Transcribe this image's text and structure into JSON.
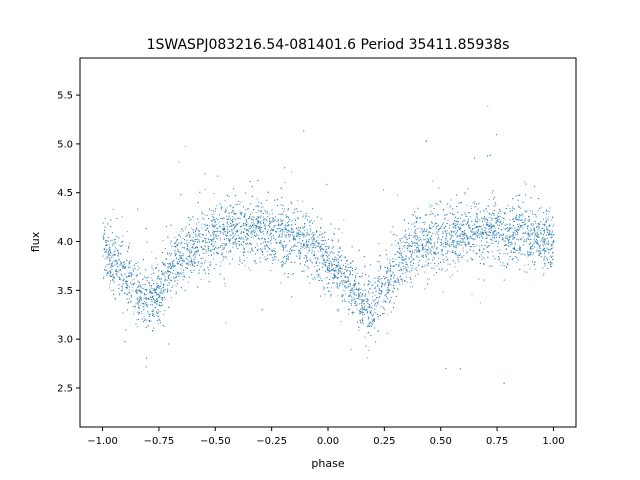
{
  "chart_data": {
    "type": "scatter",
    "title": "1SWASPJ083216.54-081401.6 Period 35411.85938s",
    "xlabel": "phase",
    "ylabel": "flux",
    "xlim": [
      -1.1,
      1.1
    ],
    "ylim": [
      2.1,
      5.88
    ],
    "xticks": [
      -1.0,
      -0.75,
      -0.5,
      -0.25,
      0.0,
      0.25,
      0.5,
      0.75,
      1.0
    ],
    "xtick_labels": [
      "−1.00",
      "−0.75",
      "−0.50",
      "−0.25",
      "0.00",
      "0.25",
      "0.50",
      "0.75",
      "1.00"
    ],
    "yticks": [
      2.5,
      3.0,
      3.5,
      4.0,
      4.5,
      5.0,
      5.5
    ],
    "ytick_labels": [
      "2.5",
      "3.0",
      "3.5",
      "4.0",
      "4.5",
      "5.0",
      "5.5"
    ],
    "grid": false,
    "point_color": "#1f77b4",
    "series": [
      {
        "light_curve_model": {
          "x": [
            -1.0,
            -0.95,
            -0.9,
            -0.85,
            -0.8,
            -0.75,
            -0.7,
            -0.65,
            -0.6,
            -0.5,
            -0.4,
            -0.3,
            -0.2,
            -0.1,
            -0.05,
            0.0,
            0.05,
            0.1,
            0.15,
            0.2,
            0.25,
            0.3,
            0.35,
            0.4,
            0.5,
            0.6,
            0.7,
            0.8,
            0.9,
            1.0
          ],
          "y": [
            3.95,
            3.8,
            3.65,
            3.48,
            3.38,
            3.5,
            3.72,
            3.88,
            3.97,
            4.07,
            4.12,
            4.12,
            4.08,
            4.0,
            3.92,
            3.82,
            3.68,
            3.52,
            3.38,
            3.32,
            3.55,
            3.75,
            3.88,
            3.96,
            4.05,
            4.1,
            4.12,
            4.1,
            4.05,
            3.98
          ]
        },
        "scatter_sigma": 0.16
      }
    ]
  }
}
